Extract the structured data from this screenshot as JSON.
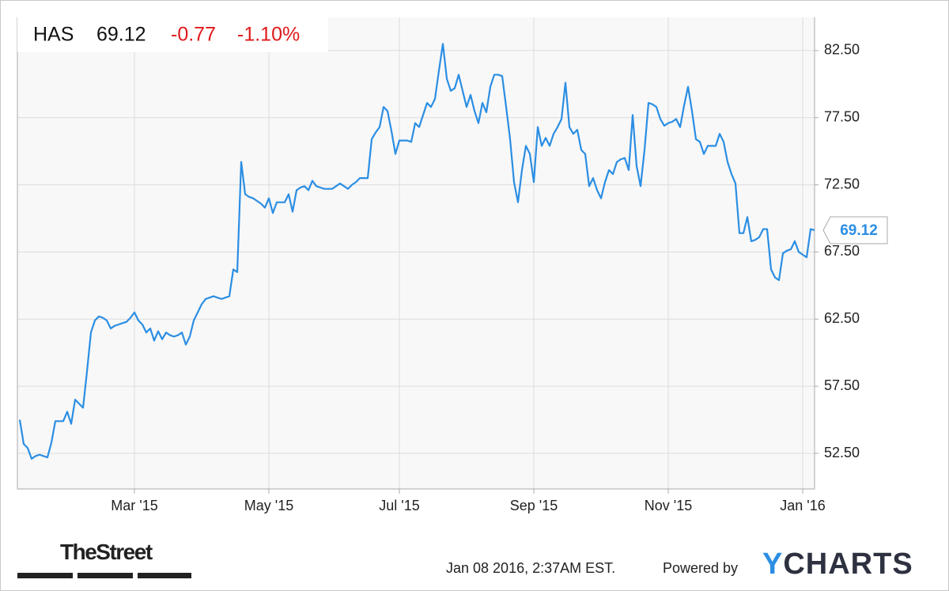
{
  "chart_data": {
    "type": "line",
    "ticker": "HAS",
    "change": "-0.77",
    "change_percent": "-1.10%",
    "timestamp": "Jan 08 2016, 2:37AM EST.",
    "powered_by": "Powered by",
    "brand": "YCHARTS",
    "source_logo": "TheStreet",
    "color": "#2b8ee3",
    "grid": true,
    "ylim": [
      49.85,
      84.97
    ],
    "yticks": [
      {
        "value": 52.5,
        "label": "52.50"
      },
      {
        "value": 57.5,
        "label": "57.50"
      },
      {
        "value": 62.5,
        "label": "62.50"
      },
      {
        "value": 67.5,
        "label": "67.50"
      },
      {
        "value": 72.5,
        "label": "72.50"
      },
      {
        "value": 77.5,
        "label": "77.50"
      },
      {
        "value": 82.5,
        "label": "82.50"
      }
    ],
    "categories": [
      null,
      null,
      null,
      null,
      null,
      null,
      null,
      null,
      null,
      null,
      null,
      null,
      null,
      null,
      null,
      null,
      null,
      null,
      null,
      null,
      null,
      null,
      null,
      null,
      null,
      null,
      null,
      null,
      null,
      "Mar '15",
      null,
      null,
      null,
      null,
      null,
      null,
      null,
      null,
      null,
      null,
      null,
      null,
      null,
      null,
      null,
      null,
      null,
      null,
      null,
      null,
      null,
      null,
      null,
      null,
      null,
      null,
      null,
      null,
      null,
      null,
      null,
      null,
      null,
      "May '15",
      null,
      null,
      null,
      null,
      null,
      null,
      null,
      null,
      null,
      null,
      null,
      null,
      null,
      null,
      null,
      null,
      null,
      null,
      null,
      null,
      null,
      null,
      null,
      null,
      null,
      null,
      null,
      null,
      null,
      null,
      null,
      null,
      "Jul '15",
      null,
      null,
      null,
      null,
      null,
      null,
      null,
      null,
      null,
      null,
      null,
      null,
      null,
      null,
      null,
      null,
      null,
      null,
      null,
      null,
      null,
      null,
      null,
      null,
      null,
      null,
      null,
      null,
      null,
      null,
      null,
      null,
      null,
      "Sep '15",
      null,
      null,
      null,
      null,
      null,
      null,
      null,
      null,
      null,
      null,
      null,
      null,
      null,
      null,
      null,
      null,
      null,
      null,
      null,
      null,
      null,
      null,
      null,
      null,
      null,
      null,
      null,
      null,
      null,
      null,
      null,
      null,
      null,
      "Nov '15",
      null,
      null,
      null,
      null,
      null,
      null,
      null,
      null,
      null,
      null,
      null,
      null,
      null,
      null,
      null,
      null,
      null,
      null,
      null,
      null,
      null,
      null,
      null,
      null,
      null,
      null,
      null,
      null,
      null,
      null,
      null,
      null,
      null,
      "Jan '16",
      null,
      null,
      null
    ],
    "values": [
      55.0,
      53.2,
      52.9,
      52.1,
      52.3,
      52.4,
      52.3,
      52.2,
      53.3,
      54.9,
      54.9,
      54.9,
      55.6,
      54.7,
      56.5,
      56.2,
      55.9,
      58.6,
      61.5,
      62.4,
      62.7,
      62.6,
      62.4,
      61.8,
      62.0,
      62.1,
      62.2,
      62.3,
      62.6,
      63.0,
      62.4,
      62.1,
      61.5,
      61.8,
      60.9,
      61.6,
      61.0,
      61.5,
      61.3,
      61.2,
      61.3,
      61.5,
      60.6,
      61.2,
      62.4,
      63.0,
      63.6,
      64.0,
      64.1,
      64.2,
      64.1,
      64.0,
      64.1,
      64.2,
      66.2,
      66.0,
      74.2,
      71.8,
      71.6,
      71.5,
      71.3,
      71.1,
      70.8,
      71.5,
      70.4,
      71.2,
      71.2,
      71.2,
      71.8,
      70.5,
      72.1,
      72.3,
      72.4,
      72.1,
      72.8,
      72.4,
      72.3,
      72.2,
      72.2,
      72.2,
      72.4,
      72.6,
      72.4,
      72.2,
      72.5,
      72.7,
      73.0,
      73.0,
      73.0,
      75.9,
      76.4,
      76.8,
      78.3,
      78.0,
      76.5,
      74.8,
      75.8,
      75.8,
      75.8,
      75.7,
      77.1,
      76.8,
      77.7,
      78.6,
      78.3,
      78.9,
      81.0,
      83.0,
      80.4,
      79.5,
      79.7,
      80.7,
      79.5,
      78.3,
      79.2,
      78.0,
      77.1,
      78.6,
      77.9,
      79.8,
      80.7,
      80.7,
      80.6,
      78.3,
      75.9,
      72.7,
      71.2,
      73.6,
      75.4,
      74.8,
      72.7,
      76.8,
      75.4,
      76.0,
      75.4,
      76.3,
      76.8,
      77.4,
      80.1,
      76.8,
      76.3,
      76.6,
      75.1,
      74.8,
      72.4,
      73.0,
      72.1,
      71.5,
      72.7,
      73.6,
      73.3,
      74.2,
      74.4,
      74.5,
      73.6,
      77.7,
      73.9,
      72.4,
      75.1,
      78.6,
      78.5,
      78.3,
      77.4,
      76.9,
      77.1,
      77.2,
      77.4,
      76.8,
      78.4,
      79.8,
      78.0,
      75.9,
      75.7,
      74.8,
      75.4,
      75.4,
      75.4,
      76.3,
      75.7,
      74.2,
      73.3,
      72.6,
      68.9,
      68.9,
      70.1,
      68.3,
      68.4,
      68.6,
      69.2,
      69.2,
      66.2,
      65.6,
      65.4,
      67.4,
      67.6,
      67.7,
      68.3,
      67.5,
      67.3,
      67.1,
      69.2,
      69.12
    ]
  }
}
